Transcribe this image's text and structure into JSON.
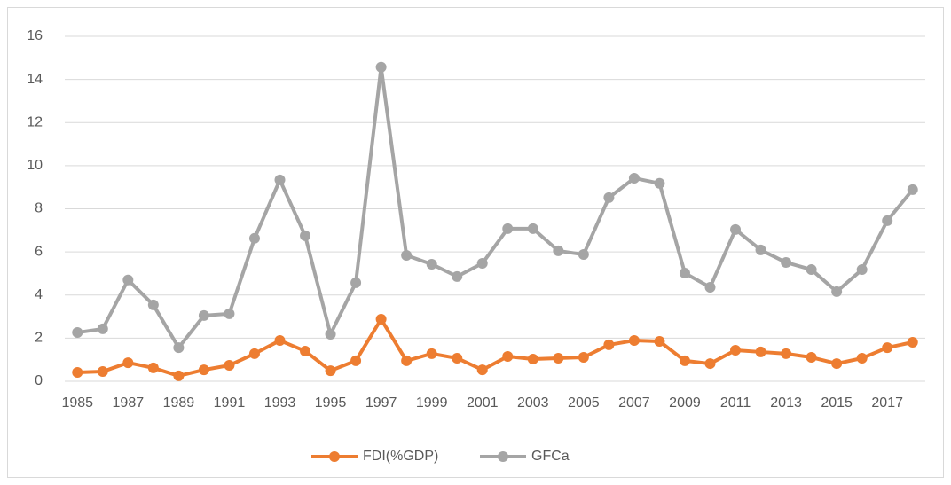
{
  "chart_data": {
    "type": "line",
    "categories": [
      "1985",
      null,
      "1987",
      null,
      "1989",
      null,
      "1991",
      null,
      "1993",
      null,
      "1995",
      null,
      "1997",
      null,
      "1999",
      null,
      "2001",
      null,
      "2003",
      null,
      "2005",
      null,
      "2007",
      null,
      "2009",
      null,
      "2011",
      null,
      "2013",
      null,
      "2015",
      null,
      "2017",
      null
    ],
    "series": [
      {
        "name": "FDI(%GDP)",
        "color": "#ed7d31",
        "values": [
          0.41,
          0.45,
          0.86,
          0.62,
          0.25,
          0.53,
          0.74,
          1.28,
          1.89,
          1.4,
          0.49,
          0.95,
          2.88,
          0.95,
          1.28,
          1.07,
          0.53,
          1.15,
          1.03,
          1.07,
          1.11,
          1.69,
          1.89,
          1.85,
          0.95,
          0.82,
          1.44,
          1.36,
          1.28,
          1.11,
          0.82,
          1.07,
          1.56,
          1.81
        ]
      },
      {
        "name": "GFCa",
        "color": "#a5a5a5",
        "values": [
          2.26,
          2.43,
          4.7,
          3.54,
          1.56,
          3.05,
          3.13,
          6.63,
          9.34,
          6.75,
          2.18,
          4.57,
          14.57,
          5.84,
          5.43,
          4.86,
          5.47,
          7.08,
          7.08,
          6.05,
          5.88,
          8.52,
          9.42,
          9.18,
          5.02,
          4.36,
          7.04,
          6.09,
          5.51,
          5.18,
          4.16,
          5.18,
          7.45,
          8.89
        ]
      }
    ],
    "ylim": [
      0,
      16
    ],
    "yticks": [
      0,
      2,
      4,
      6,
      8,
      10,
      12,
      14,
      16
    ],
    "grid": true,
    "legend": "bottom"
  }
}
